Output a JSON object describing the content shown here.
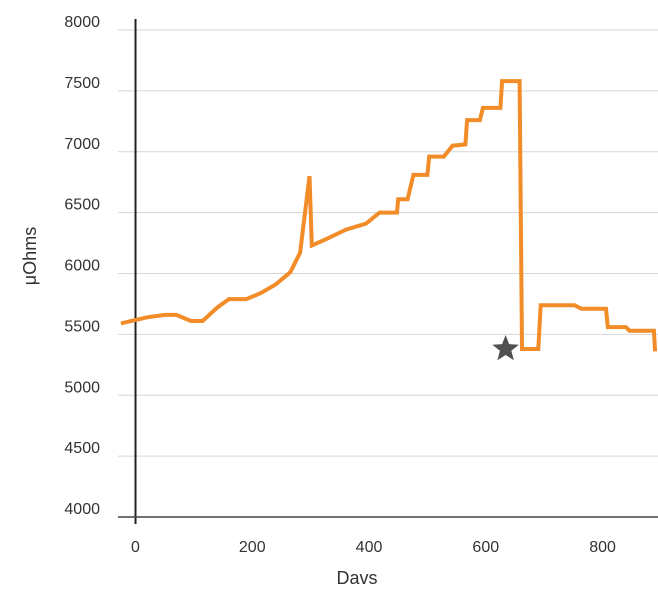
{
  "chart_data": {
    "type": "line",
    "xlabel": "Davs",
    "ylabel": "μOhms",
    "xlim": [
      -30,
      895
    ],
    "ylim": [
      4000,
      8000
    ],
    "xticks": [
      0,
      200,
      400,
      600,
      800
    ],
    "yticks": [
      4000,
      4500,
      5000,
      5500,
      6000,
      6500,
      7000,
      7500,
      8000
    ],
    "grid": "horizontal",
    "series": [
      {
        "color": "#f28c28",
        "points": [
          [
            -25,
            5590
          ],
          [
            20,
            5640
          ],
          [
            50,
            5660
          ],
          [
            70,
            5660
          ],
          [
            95,
            5610
          ],
          [
            115,
            5610
          ],
          [
            140,
            5720
          ],
          [
            160,
            5790
          ],
          [
            190,
            5790
          ],
          [
            215,
            5840
          ],
          [
            240,
            5910
          ],
          [
            265,
            6010
          ],
          [
            282,
            6170
          ],
          [
            298,
            6800
          ],
          [
            302,
            6230
          ],
          [
            330,
            6290
          ],
          [
            360,
            6360
          ],
          [
            395,
            6410
          ],
          [
            418,
            6500
          ],
          [
            435,
            6500
          ],
          [
            448,
            6500
          ],
          [
            450,
            6610
          ],
          [
            466,
            6610
          ],
          [
            476,
            6810
          ],
          [
            500,
            6810
          ],
          [
            503,
            6960
          ],
          [
            528,
            6960
          ],
          [
            543,
            7050
          ],
          [
            565,
            7060
          ],
          [
            568,
            7260
          ],
          [
            590,
            7260
          ],
          [
            595,
            7360
          ],
          [
            625,
            7360
          ],
          [
            628,
            7580
          ],
          [
            658,
            7580
          ],
          [
            662,
            5380
          ],
          [
            690,
            5380
          ],
          [
            694,
            5740
          ],
          [
            752,
            5740
          ],
          [
            764,
            5710
          ],
          [
            806,
            5710
          ],
          [
            809,
            5560
          ],
          [
            840,
            5560
          ],
          [
            846,
            5530
          ],
          [
            888,
            5530
          ],
          [
            890,
            5360
          ]
        ]
      }
    ],
    "markers": [
      {
        "shape": "star",
        "x": 634,
        "y": 5380,
        "color": "#505050"
      }
    ],
    "y_axis_line_at_x": 0,
    "x_axis_line_at_y": 4000
  }
}
